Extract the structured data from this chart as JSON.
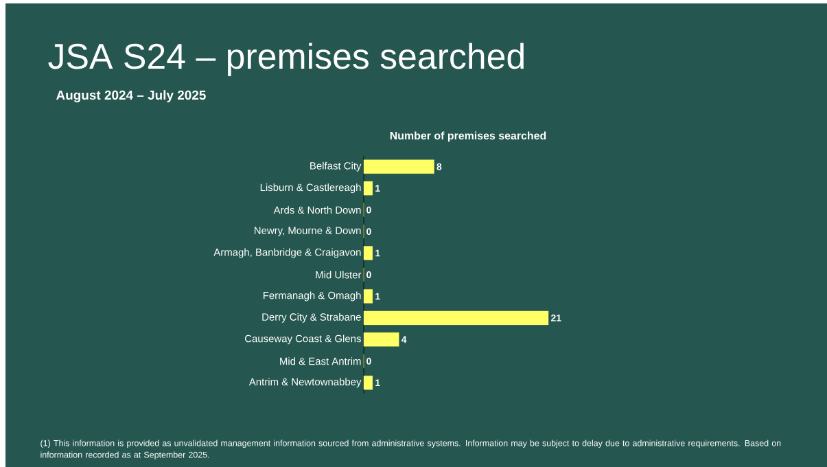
{
  "chart_data": {
    "type": "bar",
    "orientation": "horizontal",
    "title": "JSA S24 – premises searched",
    "subtitle": "August 2024 – July 2025",
    "xlabel": "Number of premises searched",
    "categories": [
      "Belfast City",
      "Lisburn & Castlereagh",
      "Ards & North Down",
      "Newry, Mourne & Down",
      "Armagh, Banbridge & Craigavon",
      "Mid Ulster",
      "Fermanagh & Omagh",
      "Derry City & Strabane",
      "Causeway Coast & Glens",
      "Mid & East Antrim",
      "Antrim & Newtownabbey"
    ],
    "values": [
      8,
      1,
      0,
      0,
      1,
      0,
      1,
      21,
      4,
      0,
      1
    ],
    "color": "#ffff66",
    "data_labels": true,
    "annotations": [
      "(1) This information is provided as unvalidated management information sourced from administrative systems.  Information may be subject to delay due to administrative requirements. Based on information recorded as at September 2025."
    ]
  }
}
